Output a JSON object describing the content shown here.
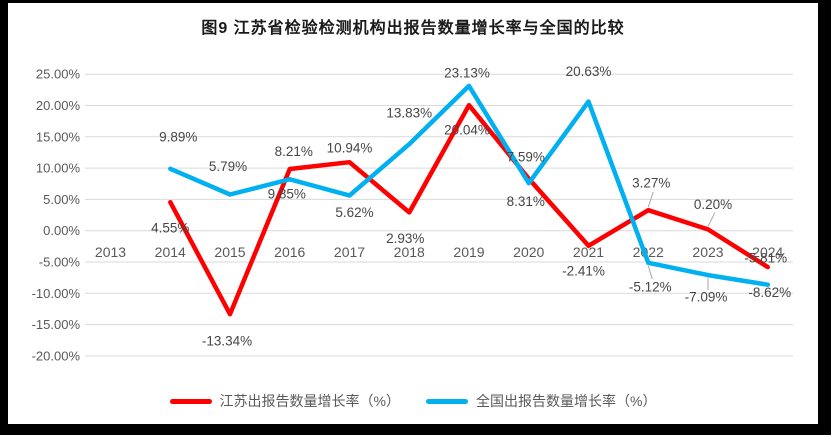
{
  "title": "图9  江苏省检验检测机构出报告数量增长率与全国的比较",
  "chart_data": {
    "type": "line",
    "title": "图9  江苏省检验检测机构出报告数量增长率与全国的比较",
    "categories": [
      "2013",
      "2014",
      "2015",
      "2016",
      "2017",
      "2018",
      "2019",
      "2020",
      "2021",
      "2022",
      "2023",
      "2024"
    ],
    "y_ticks": [
      "25.00%",
      "20.00%",
      "15.00%",
      "10.00%",
      "5.00%",
      "0.00%",
      "-5.00%",
      "-10.00%",
      "-15.00%",
      "-20.00%"
    ],
    "ylim": [
      -20,
      25
    ],
    "grid": true,
    "legend_position": "bottom",
    "colors": {
      "jiangsu_red": "#FF0000",
      "national_blue": "#00B0F0",
      "gridline": "#D9D9D9",
      "tick_text": "#595959",
      "data_label_text": "#464646",
      "leader_line": "#A6A6A6"
    },
    "series": [
      {
        "name": "江苏出报告数量增长率（%）",
        "color": "#FF0000",
        "values": [
          null,
          4.55,
          -13.34,
          9.85,
          10.94,
          2.93,
          20.04,
          8.31,
          -2.41,
          3.27,
          0.2,
          -5.81
        ],
        "labels": [
          null,
          "4.55%",
          "-13.34%",
          "9.85%",
          "10.94%",
          "2.93%",
          "20.04%",
          "8.31%",
          "-2.41%",
          "3.27%",
          "0.20%",
          "-5.81%"
        ],
        "label_dx": [
          0,
          0,
          -3,
          -3,
          0,
          -4,
          -2,
          -3,
          -5,
          3,
          5,
          -2
        ],
        "label_dy": [
          0,
          26,
          27,
          25,
          -14,
          26,
          25,
          23,
          25,
          -27,
          -25,
          -9
        ],
        "leader": [
          false,
          false,
          false,
          false,
          false,
          false,
          false,
          false,
          false,
          true,
          true,
          false
        ]
      },
      {
        "name": "全国出报告数量增长率（%）",
        "color": "#00B0F0",
        "values": [
          null,
          9.89,
          5.79,
          8.21,
          5.62,
          13.83,
          23.13,
          7.59,
          20.63,
          -5.12,
          -7.09,
          -8.62
        ],
        "labels": [
          null,
          "9.89%",
          "5.79%",
          "8.21%",
          "5.62%",
          "13.83%",
          "23.13%",
          "7.59%",
          "20.63%",
          "-5.12%",
          "-7.09%",
          "-8.62%"
        ],
        "label_dx": [
          0,
          8,
          -2,
          4,
          5,
          0,
          -2,
          -3,
          0,
          2,
          -2,
          2
        ],
        "label_dy": [
          0,
          -32,
          -28,
          -28,
          17,
          -31,
          -13,
          -26,
          -30,
          24,
          22,
          8
        ],
        "leader": [
          false,
          false,
          false,
          false,
          false,
          false,
          false,
          false,
          false,
          true,
          true,
          false
        ]
      }
    ]
  }
}
